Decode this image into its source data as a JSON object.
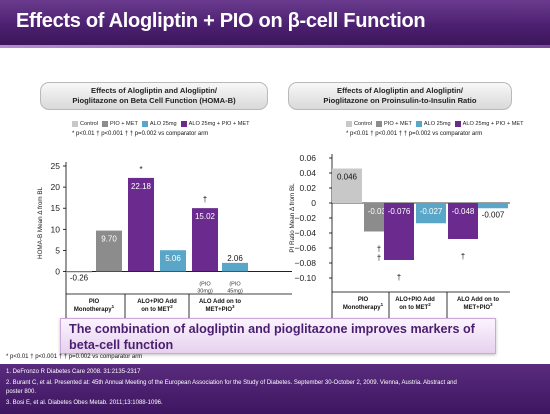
{
  "title": "Effects of Alogliptin + PIO on β-cell Function",
  "colors": {
    "control": "#c8c8c8",
    "pio_met": "#8c8c8c",
    "alo25": "#5aa6c8",
    "alo25_pio_met": "#6a2a8e"
  },
  "panels": [
    {
      "title_line1": "Effects of Alogliptin and Alogliptin/",
      "title_line2": "Pioglitazone on Beta Cell Function (HOMA-B)",
      "legend": [
        "Control",
        "PIO + MET",
        "ALO 25mg",
        "ALO 25mg + PIO + MET"
      ],
      "note": "* p<0.01 † p<0.001     † † p=0.002 vs comparator arm"
    },
    {
      "title_line1": "Effects of Alogliptin and Alogliptin/",
      "title_line2": "Pioglitazone on Proinsulin-to-Insulin Ratio",
      "legend": [
        "Control",
        "PIO + MET",
        "ALO 25mg",
        "ALO 25mg + PIO + MET"
      ],
      "note": "* p<0.01 † p<0.001     † † p=0.002 vs comparator arm"
    }
  ],
  "chart_data": [
    {
      "type": "bar",
      "ylabel": "HOMA-B Mean Δ from BL",
      "ylim": [
        -2,
        25
      ],
      "yticks": [
        0,
        5,
        10,
        15,
        20,
        25
      ],
      "bars": [
        {
          "group": 0,
          "series": "Control",
          "value": -0.26,
          "label": "-0.26",
          "mark": ""
        },
        {
          "group": 0,
          "series": "PIO + MET",
          "value": 9.7,
          "label": "9.70",
          "mark": ""
        },
        {
          "group": 1,
          "series": "ALO 25mg + PIO + MET",
          "value": 22.18,
          "label": "22.18",
          "mark": "*"
        },
        {
          "group": 1,
          "series": "ALO 25mg",
          "value": 5.06,
          "label": "5.06",
          "mark": ""
        },
        {
          "group": 2,
          "series": "ALO 25mg + PIO + MET",
          "value": 15.02,
          "label": "15.02",
          "mark": "†",
          "sublabel": [
            "(PIO",
            "30mg)"
          ]
        },
        {
          "group": 2,
          "series": "ALO 25mg",
          "value": 2.06,
          "label": "2.06",
          "mark": "",
          "sublabel": [
            "(PIO",
            "45mg)"
          ]
        }
      ],
      "groups": [
        {
          "lines": [
            "PIO",
            "Monotherapy"
          ],
          "sup": "1"
        },
        {
          "lines": [
            "ALO+PIO Add",
            "on to MET"
          ],
          "sup": "2"
        },
        {
          "lines": [
            "ALO Add on to",
            "MET+PIO"
          ],
          "sup": "3"
        }
      ]
    },
    {
      "type": "bar",
      "ylabel": "PI Ratio Mean Δ from BL",
      "ylim": [
        -0.1,
        0.06
      ],
      "yticks": [
        0.06,
        0.04,
        0.02,
        0,
        -0.02,
        -0.04,
        -0.06,
        -0.08,
        -0.1
      ],
      "ytick_labels": [
        "0.06",
        "0.04",
        "0.02",
        "0",
        "−0.02",
        "−0.04",
        "−0.06",
        "−0.08",
        "−0.10"
      ],
      "bars": [
        {
          "group": 0,
          "series": "Control",
          "value": 0.046,
          "label": "0.046",
          "mark": ""
        },
        {
          "group": 0,
          "series": "PIO + MET",
          "value": -0.038,
          "label": "-0.038",
          "mark": "†\n†"
        },
        {
          "group": 1,
          "series": "ALO 25mg + PIO + MET",
          "value": -0.076,
          "label": "-0.076",
          "mark": "†"
        },
        {
          "group": 1,
          "series": "ALO 25mg",
          "value": -0.027,
          "label": "-0.027",
          "mark": ""
        },
        {
          "group": 2,
          "series": "ALO 25mg + PIO + MET",
          "value": -0.048,
          "label": "-0.048",
          "mark": "†"
        },
        {
          "group": 2,
          "series": "ALO 25mg",
          "value": -0.007,
          "label": "-0.007",
          "mark": ""
        }
      ],
      "groups": [
        {
          "lines": [
            "PIO",
            "Monotherapy"
          ],
          "sup": "1"
        },
        {
          "lines": [
            "ALO+PIO Add",
            "on to MET"
          ],
          "sup": "2"
        },
        {
          "lines": [
            "ALO Add on to",
            "MET+PIO"
          ],
          "sup": "3"
        }
      ]
    }
  ],
  "callout": "The combination of alogliptin and pioglitazone improves markers of beta-cell function",
  "footnote": "* p<0.01   † p<0.001     † † p=0.002 vs comparator arm",
  "references": [
    "1. DeFronzo R Diabetes Care 2008. 31:2135-2317",
    "2. Burant  C, et al. Presented at: 45th Annual Meeting of the European Association for the Study of Diabetes. September 30-October 2, 2009. Vienna, Austria. Abstract and",
    "poster 800.",
    "3. Bosi E, et al. Diabetes Obes Metab. 2011;13:1088-1096."
  ]
}
